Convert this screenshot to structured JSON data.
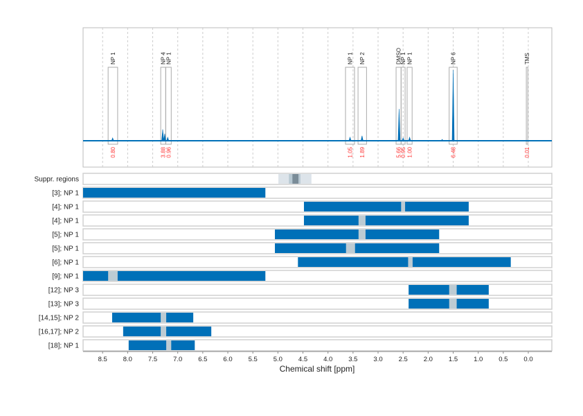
{
  "chart_data": {
    "type": "nmr-spectrum-with-range-bars",
    "xlabel": "Chemical shift [ppm]",
    "xlim": [
      8.89,
      -0.47
    ],
    "x_reversed": true,
    "xticks": [
      "8.5",
      "8.0",
      "7.5",
      "7.0",
      "6.5",
      "6.0",
      "5.5",
      "5.0",
      "4.5",
      "4.0",
      "3.5",
      "3.0",
      "2.5",
      "2.0",
      "1.5",
      "1.0",
      "0.5",
      "0.0"
    ],
    "grid": true,
    "colors": {
      "spectrum": "#0070b8",
      "bar": "#0070b8",
      "gap": "#bccbd3",
      "integral": "#ff3333",
      "box": "#aaaaaa"
    },
    "spectrum_peaks": [
      {
        "ppm": 8.3,
        "rel_height": 0.04
      },
      {
        "ppm": 7.3,
        "rel_height": 0.16
      },
      {
        "ppm": 7.26,
        "rel_height": 0.1
      },
      {
        "ppm": 7.2,
        "rel_height": 0.05
      },
      {
        "ppm": 3.56,
        "rel_height": 0.05
      },
      {
        "ppm": 3.32,
        "rel_height": 0.07
      },
      {
        "ppm": 2.58,
        "rel_height": 0.45
      },
      {
        "ppm": 2.5,
        "rel_height": 0.04
      },
      {
        "ppm": 2.37,
        "rel_height": 0.05
      },
      {
        "ppm": 1.72,
        "rel_height": 0.02
      },
      {
        "ppm": 1.5,
        "rel_height": 1.0
      }
    ],
    "regions": [
      {
        "label": "NP 1",
        "from": 8.39,
        "to": 8.2,
        "integral": "0.80"
      },
      {
        "label": "NP 4",
        "from": 7.34,
        "to": 7.24,
        "integral": "3.88"
      },
      {
        "label": "NP 1",
        "from": 7.24,
        "to": 7.13,
        "integral": "0.96"
      },
      {
        "label": "NP 1",
        "from": 3.65,
        "to": 3.47,
        "integral": "1.05"
      },
      {
        "label": "NP 2",
        "from": 3.4,
        "to": 3.23,
        "integral": "1.89"
      },
      {
        "label": "DMSO",
        "from": 2.64,
        "to": 2.54,
        "integral": "5.66"
      },
      {
        "label": "NP 1",
        "from": 2.54,
        "to": 2.46,
        "integral": "0.95"
      },
      {
        "label": "NP 1",
        "from": 2.42,
        "to": 2.32,
        "integral": "1.00"
      },
      {
        "label": "NP 6",
        "from": 1.58,
        "to": 1.42,
        "integral": "6.48"
      },
      {
        "label": "TMS",
        "from": 0.04,
        "to": 0.01,
        "integral": "0.01"
      }
    ],
    "suppressed": {
      "label": "Suppr. regions",
      "bands": [
        [
          4.99,
          4.33,
          "#dde4ea"
        ],
        [
          4.78,
          4.55,
          "#b7c8d2"
        ],
        [
          4.71,
          4.59,
          "#7a8c98"
        ]
      ]
    },
    "rows": [
      {
        "label": "[3]; NP 1",
        "from": 8.89,
        "to": 5.25,
        "gap": null
      },
      {
        "label": "[4]; NP 1",
        "from": 4.48,
        "to": 1.19,
        "gap": [
          2.54,
          2.46
        ]
      },
      {
        "label": "[4]; NP 1",
        "from": 4.48,
        "to": 1.19,
        "gap": [
          3.39,
          3.25
        ]
      },
      {
        "label": "[5]; NP 1",
        "from": 5.06,
        "to": 1.78,
        "gap": [
          3.39,
          3.25
        ]
      },
      {
        "label": "[5]; NP 1",
        "from": 5.06,
        "to": 1.78,
        "gap": [
          3.64,
          3.46
        ]
      },
      {
        "label": "[6]; NP 1",
        "from": 4.6,
        "to": 0.35,
        "gap": [
          2.4,
          2.31
        ]
      },
      {
        "label": "[9]; NP 1",
        "from": 8.89,
        "to": 5.25,
        "gap": [
          8.39,
          8.2
        ]
      },
      {
        "label": "[12]; NP 3",
        "from": 2.39,
        "to": 0.79,
        "gap": [
          1.58,
          1.43
        ]
      },
      {
        "label": "[13]; NP 3",
        "from": 2.39,
        "to": 0.79,
        "gap": [
          1.58,
          1.43
        ]
      },
      {
        "label": "[14,15]; NP 2",
        "from": 8.31,
        "to": 6.69,
        "gap": [
          7.34,
          7.23
        ]
      },
      {
        "label": "[16,17]; NP 2",
        "from": 8.09,
        "to": 6.33,
        "gap": [
          7.34,
          7.23
        ]
      },
      {
        "label": "[18]; NP 1",
        "from": 7.98,
        "to": 6.66,
        "gap": [
          7.23,
          7.13
        ]
      }
    ]
  }
}
